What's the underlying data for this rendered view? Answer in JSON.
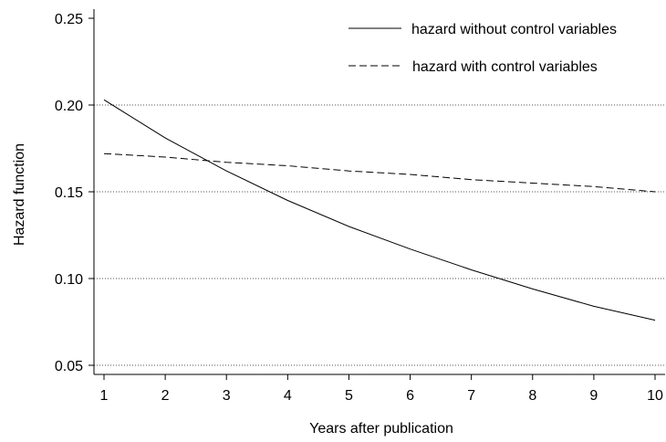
{
  "chart_data": {
    "type": "line",
    "xlabel": "Years after publication",
    "ylabel": "Hazard function",
    "xlim": [
      1,
      10
    ],
    "ylim": [
      0.05,
      0.25
    ],
    "x_ticks": [
      1,
      2,
      3,
      4,
      5,
      6,
      7,
      8,
      9,
      10
    ],
    "y_ticks": [
      0.05,
      0.1,
      0.15,
      0.2,
      0.25
    ],
    "y_tick_labels": [
      "0.05",
      "0.10",
      "0.15",
      "0.20",
      "0.25"
    ],
    "grid": "horizontal dotted at 0.05, 0.10, 0.15, 0.20",
    "legend_position": "top-right",
    "x": [
      1,
      2,
      3,
      4,
      5,
      6,
      7,
      8,
      9,
      10
    ],
    "series": [
      {
        "name": "hazard without control variables",
        "style": "solid",
        "color": "#000000",
        "values": [
          0.203,
          0.181,
          0.162,
          0.145,
          0.13,
          0.117,
          0.105,
          0.094,
          0.084,
          0.076
        ]
      },
      {
        "name": "hazard with control variables",
        "style": "dashed",
        "color": "#000000",
        "values": [
          0.172,
          0.17,
          0.167,
          0.165,
          0.162,
          0.16,
          0.157,
          0.155,
          0.153,
          0.15
        ]
      }
    ]
  }
}
